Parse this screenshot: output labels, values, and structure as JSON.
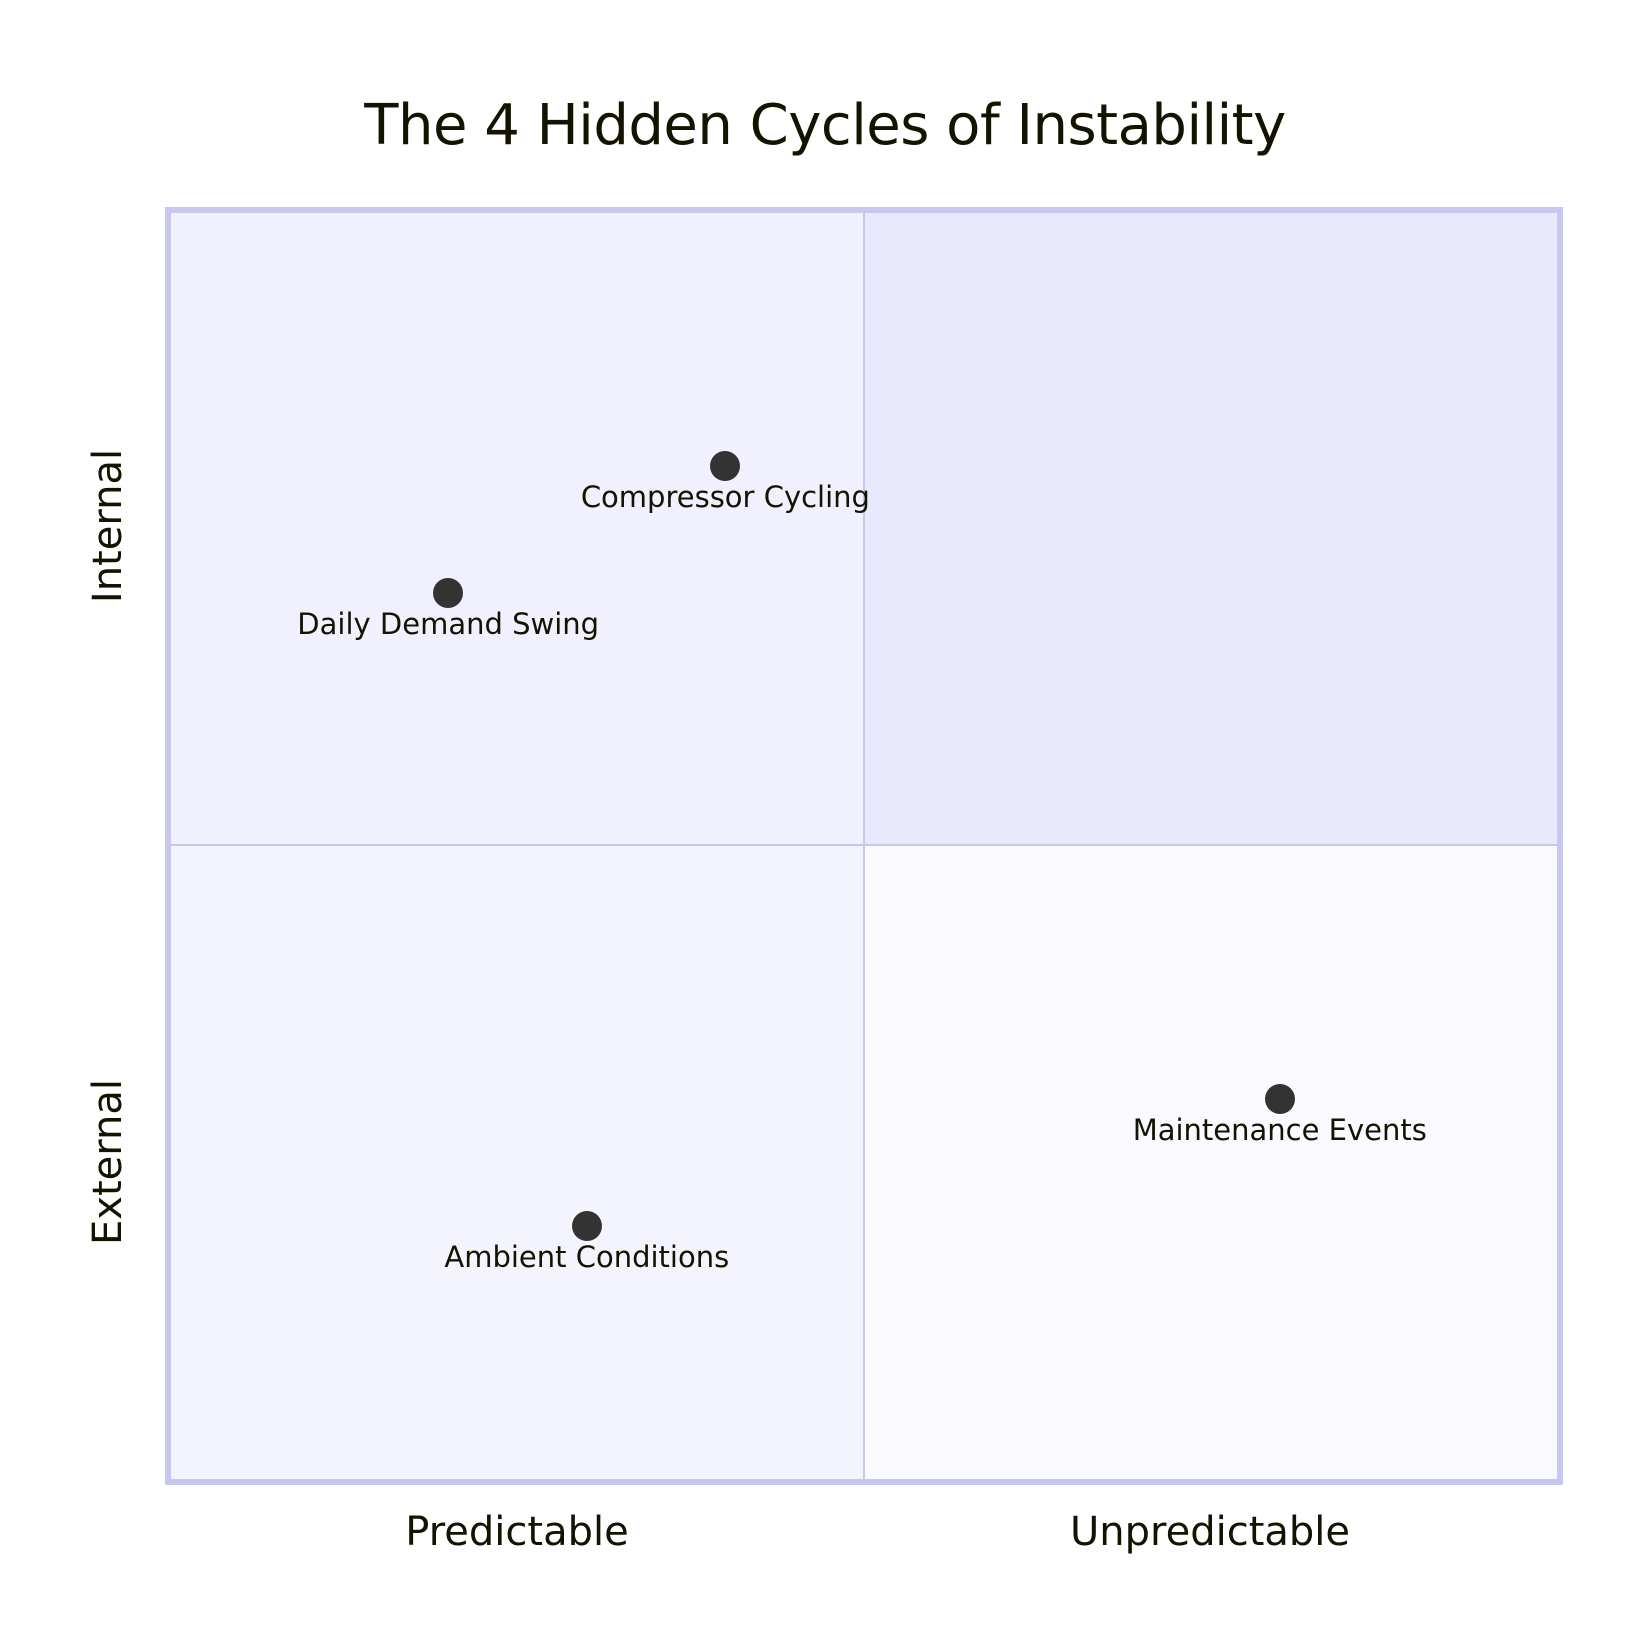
{
  "chart_data": {
    "type": "scatter",
    "subtype": "quadrant",
    "title": "The 4 Hidden Cycles of Instability",
    "x_axis": {
      "left_label": "Predictable",
      "right_label": "Unpredictable",
      "range": [
        0,
        1
      ]
    },
    "y_axis": {
      "bottom_label": "External",
      "top_label": "Internal",
      "range": [
        0,
        1
      ]
    },
    "quadrants": {
      "top_left": {
        "label": "",
        "fill": "#f0f0fe"
      },
      "top_right": {
        "label": "",
        "fill": "#e9e9fd"
      },
      "bottom_left": {
        "label": "",
        "fill": "#f4f4fe"
      },
      "bottom_right": {
        "label": "",
        "fill": "#f9f9ff"
      }
    },
    "points": [
      {
        "label": "Compressor Cycling",
        "x": 0.4,
        "y": 0.8
      },
      {
        "label": "Daily Demand Swing",
        "x": 0.2,
        "y": 0.7
      },
      {
        "label": "Maintenance Events",
        "x": 0.8,
        "y": 0.3
      },
      {
        "label": "Ambient Conditions",
        "x": 0.3,
        "y": 0.2
      }
    ],
    "grid": false,
    "legend": "none"
  },
  "colors": {
    "border": "#c8c8ee",
    "point": "#333333",
    "text": "#131300",
    "background": "#ffffff"
  }
}
